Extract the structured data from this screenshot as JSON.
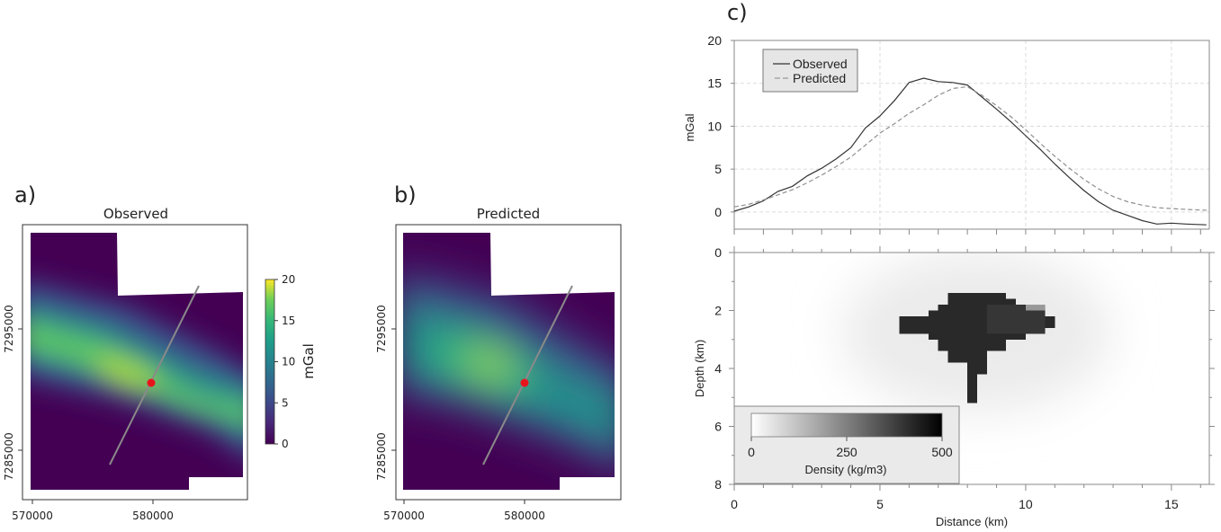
{
  "figure": {
    "panel_labels": [
      "a)",
      "b)",
      "c)"
    ]
  },
  "chart_data": [
    {
      "type": "heatmap",
      "panel": "a)",
      "title": "Observed",
      "colormap": "viridis",
      "xticks": [
        "570000",
        "580000"
      ],
      "yticks": [
        "7295000",
        "7285000"
      ],
      "xlim": [
        569500,
        587500
      ],
      "ylim": [
        7281000,
        7303500
      ],
      "colorbar": {
        "label": "mGal",
        "ticks": [
          "0",
          "5",
          "10",
          "15",
          "20"
        ],
        "range": [
          0,
          20
        ]
      },
      "profile_line": {
        "start": [
          576500,
          7286200
        ],
        "end": [
          583700,
          7301500
        ],
        "line_color": "#8a8a8a"
      },
      "marker": {
        "at": [
          579900,
          7292500
        ],
        "color": "#e8141c"
      },
      "anomaly": {
        "peak_mGal": 17,
        "trend": "NW-SE elongated ridge"
      }
    },
    {
      "type": "heatmap",
      "panel": "b)",
      "title": "Predicted",
      "colormap": "viridis",
      "xticks": [
        "570000",
        "580000"
      ],
      "yticks": [
        "7295000",
        "7285000"
      ],
      "xlim": [
        569500,
        587500
      ],
      "ylim": [
        7281000,
        7303500
      ],
      "profile_line": {
        "start": [
          576500,
          7286200
        ],
        "end": [
          583700,
          7301500
        ],
        "line_color": "#8a8a8a"
      },
      "marker": {
        "at": [
          579900,
          7292500
        ],
        "color": "#e8141c"
      },
      "anomaly": {
        "peak_mGal": 16,
        "trend": "smooth elliptical high"
      }
    },
    {
      "type": "line",
      "panel": "c) top",
      "xlabel": "",
      "ylabel": "mGal",
      "xlim": [
        0,
        16.3
      ],
      "ylim": [
        -2,
        20
      ],
      "yticks": [
        "0",
        "5",
        "10",
        "15",
        "20"
      ],
      "grid": true,
      "legend": "top-left",
      "series": [
        {
          "name": "Observed",
          "style": "solid",
          "x": [
            0,
            0.5,
            1,
            1.5,
            2,
            2.5,
            3,
            3.5,
            4,
            4.5,
            5,
            5.5,
            6,
            6.5,
            7,
            7.5,
            8,
            8.5,
            9,
            9.5,
            10,
            10.5,
            11,
            11.5,
            12,
            12.5,
            13,
            13.5,
            14,
            14.5,
            15,
            15.5,
            16.2
          ],
          "values": [
            0.1,
            0.6,
            1.3,
            2.4,
            3.0,
            4.2,
            5.1,
            6.2,
            7.5,
            9.8,
            11.2,
            13.0,
            15.1,
            15.6,
            15.2,
            15.1,
            14.8,
            13.4,
            12.0,
            10.5,
            8.9,
            7.3,
            5.6,
            4.0,
            2.5,
            1.2,
            0.2,
            -0.4,
            -1.0,
            -1.4,
            -1.3,
            -1.4,
            -1.5
          ]
        },
        {
          "name": "Predicted",
          "style": "dashed",
          "x": [
            0,
            0.5,
            1,
            1.5,
            2,
            2.5,
            3,
            3.5,
            4,
            4.5,
            5,
            5.5,
            6,
            6.5,
            7,
            7.5,
            8,
            8.5,
            9,
            9.5,
            10,
            10.5,
            11,
            11.5,
            12,
            12.5,
            13,
            13.5,
            14,
            14.5,
            15,
            15.5,
            16.2
          ],
          "values": [
            0.6,
            0.9,
            1.4,
            2.0,
            2.6,
            3.4,
            4.3,
            5.3,
            6.4,
            7.8,
            9.2,
            10.3,
            11.5,
            12.5,
            13.6,
            14.4,
            14.6,
            13.6,
            12.4,
            11.1,
            9.6,
            8.0,
            6.5,
            5.1,
            3.8,
            2.7,
            1.8,
            1.2,
            0.8,
            0.5,
            0.4,
            0.3,
            0.2
          ]
        }
      ]
    },
    {
      "type": "heatmap",
      "panel": "c) bottom",
      "xlabel": "Distance (km)",
      "ylabel": "Depth (km)",
      "xlim": [
        0,
        16.3
      ],
      "ylim": [
        8,
        0
      ],
      "xticks": [
        "0",
        "5",
        "10",
        "15"
      ],
      "yticks": [
        "0",
        "2",
        "4",
        "6",
        "8"
      ],
      "colormap": "greys",
      "colorbar": {
        "label": "Density (kg/m3)",
        "ticks": [
          "0",
          "250",
          "500"
        ],
        "range": [
          0,
          500
        ],
        "placement": "bottom-left"
      },
      "cell_size_km": [
        0.333,
        0.4
      ],
      "body_rows": [
        {
          "depth_top": 1.4,
          "depth_bottom": 1.6,
          "x_from": 7.33,
          "x_to": 9.33
        },
        {
          "depth_top": 1.6,
          "depth_bottom": 1.8,
          "x_from": 7.33,
          "x_to": 9.67
        },
        {
          "depth_top": 1.8,
          "depth_bottom": 2.0,
          "x_from": 7.0,
          "x_to": 10.0
        },
        {
          "depth_top": 2.0,
          "depth_bottom": 2.2,
          "x_from": 6.67,
          "x_to": 10.67
        },
        {
          "depth_top": 2.2,
          "depth_bottom": 2.6,
          "x_from": 5.67,
          "x_to": 11.0
        },
        {
          "depth_top": 2.6,
          "depth_bottom": 2.8,
          "x_from": 5.67,
          "x_to": 10.67
        },
        {
          "depth_top": 2.8,
          "depth_bottom": 3.0,
          "x_from": 6.67,
          "x_to": 10.0
        },
        {
          "depth_top": 3.0,
          "depth_bottom": 3.4,
          "x_from": 7.0,
          "x_to": 9.33
        },
        {
          "depth_top": 3.4,
          "depth_bottom": 3.8,
          "x_from": 7.33,
          "x_to": 8.67
        },
        {
          "depth_top": 3.8,
          "depth_bottom": 4.2,
          "x_from": 8.0,
          "x_to": 8.67
        },
        {
          "depth_top": 4.2,
          "depth_bottom": 5.2,
          "x_from": 8.0,
          "x_to": 8.33
        }
      ],
      "body_density_kg_m3": 420
    }
  ]
}
